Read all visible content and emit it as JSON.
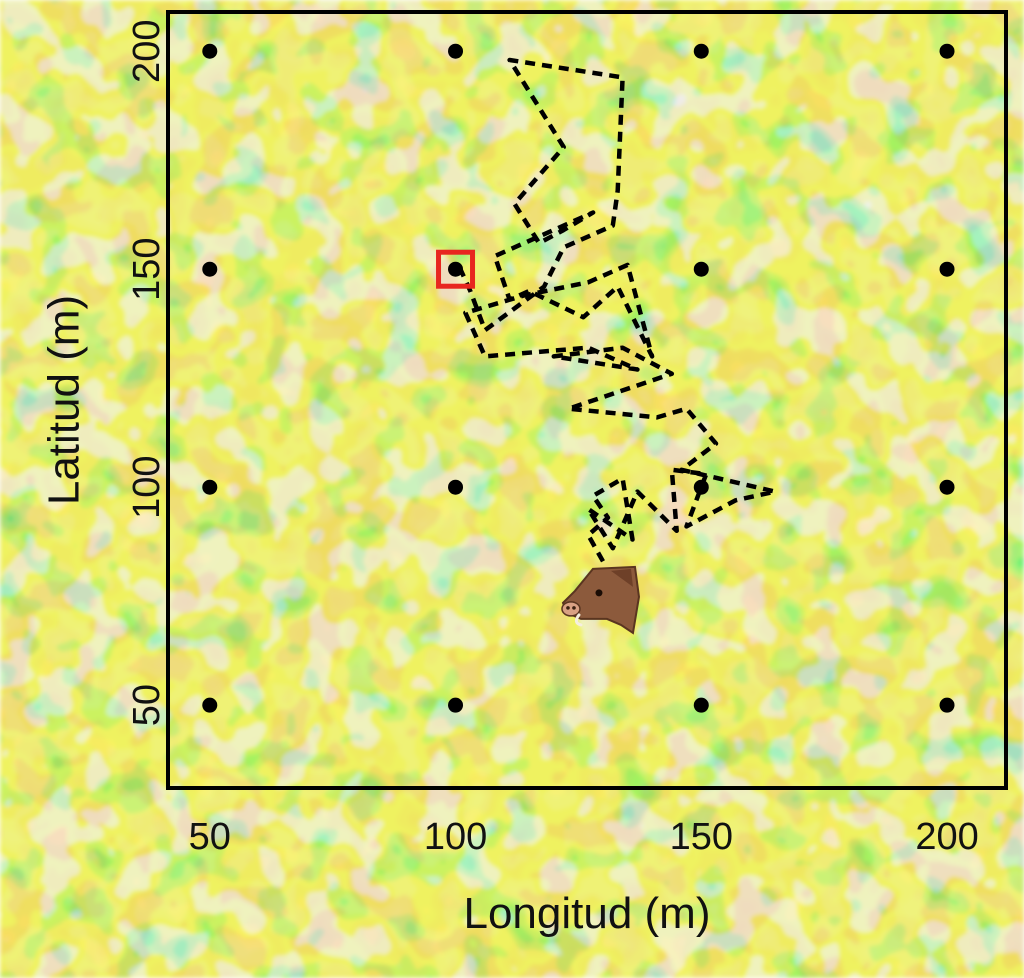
{
  "chart_data": {
    "type": "scatter",
    "xlabel": "Longitud (m)",
    "ylabel": "Latitud (m)",
    "xlim": [
      41.5,
      212
    ],
    "ylim": [
      31,
      209
    ],
    "x_ticks": [
      "50",
      "100",
      "150",
      "200"
    ],
    "y_ticks": [
      "50",
      "100",
      "150",
      "200"
    ],
    "grid": false,
    "background": "heat map of vegetation (green/yellow/tan texture)",
    "series": [
      {
        "type": "points",
        "color": "#000000",
        "points": [
          [
            50,
            200
          ],
          [
            100,
            200
          ],
          [
            150,
            200
          ],
          [
            200,
            200
          ],
          [
            50,
            150
          ],
          [
            100,
            150
          ],
          [
            150,
            150
          ],
          [
            200,
            150
          ],
          [
            50,
            100
          ],
          [
            100,
            100
          ],
          [
            150,
            100
          ],
          [
            200,
            100
          ],
          [
            50,
            50
          ],
          [
            100,
            50
          ],
          [
            150,
            50
          ],
          [
            200,
            50
          ]
        ]
      },
      {
        "type": "path",
        "style": "dashed",
        "color": "#000000",
        "points": [
          [
            130,
            83
          ],
          [
            127,
            89
          ],
          [
            131,
            93
          ],
          [
            128,
            98
          ],
          [
            134,
            102
          ],
          [
            136,
            88
          ],
          [
            127,
            95
          ],
          [
            132,
            86
          ],
          [
            137,
            99
          ],
          [
            145,
            90
          ],
          [
            144,
            104
          ],
          [
            151,
            103
          ],
          [
            147,
            91
          ],
          [
            157,
            97
          ],
          [
            165,
            99
          ],
          [
            146,
            104
          ],
          [
            153,
            110
          ],
          [
            147,
            118
          ],
          [
            141,
            116
          ],
          [
            123,
            118
          ],
          [
            144,
            126
          ],
          [
            134,
            132
          ],
          [
            120,
            130
          ],
          [
            137,
            127
          ],
          [
            127,
            132
          ],
          [
            106,
            130
          ],
          [
            102,
            140
          ],
          [
            114,
            144
          ],
          [
            127,
            147
          ],
          [
            135,
            151
          ],
          [
            140,
            130
          ],
          [
            133,
            146
          ],
          [
            126,
            139
          ],
          [
            115,
            145
          ],
          [
            111,
            143
          ],
          [
            108,
            153
          ],
          [
            118,
            158
          ],
          [
            128,
            163
          ],
          [
            122,
            159
          ],
          [
            117,
            156
          ],
          [
            112,
            165
          ],
          [
            122,
            178
          ],
          [
            111,
            198
          ],
          [
            134,
            194
          ],
          [
            133,
            168
          ],
          [
            132,
            160
          ],
          [
            122,
            155
          ],
          [
            118,
            146
          ],
          [
            106,
            136
          ],
          [
            103,
            145
          ],
          [
            101,
            150
          ]
        ]
      }
    ],
    "annotations": [
      {
        "kind": "square-marker",
        "color": "#e8261f",
        "x": 100,
        "y": 150
      },
      {
        "kind": "animal-icon",
        "name": "boar-icon",
        "x": 130,
        "y": 73
      }
    ],
    "colors": {
      "green_dark": "#2fb52f",
      "green_light": "#7ed43b",
      "yellow": "#dfe31e",
      "tan": "#e7b98b",
      "highlight": "#f5d9cf",
      "marker": "#e8261f"
    }
  }
}
